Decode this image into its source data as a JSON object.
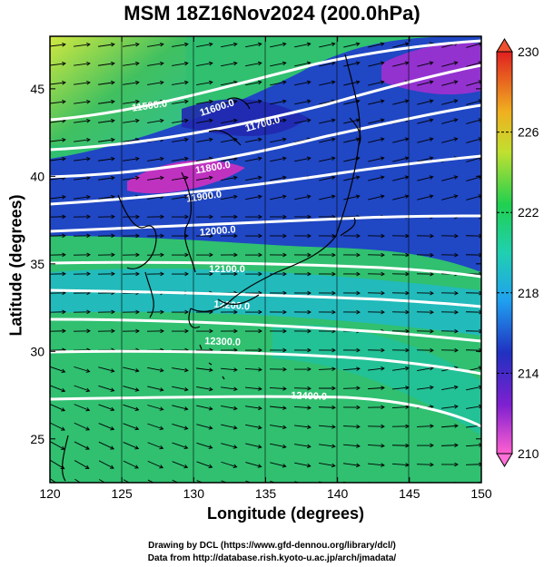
{
  "title": "MSM 18Z16Nov2024 (200.0hPa)",
  "credits": {
    "line1": "Drawing by DCL (https://www.gfd-dennou.org/library/dcl/)",
    "line2": "Data from http://database.rish.kyoto-u.ac.jp/arch/jmadata/"
  },
  "map": {
    "xlabel": "Longitude (degrees)",
    "ylabel": "Latitude  (degrees)",
    "xlim": [
      120,
      150
    ],
    "ylim": [
      22.5,
      48
    ],
    "x_ticks": [
      120,
      125,
      130,
      135,
      140,
      145,
      150
    ],
    "y_ticks": [
      25,
      30,
      35,
      40,
      45
    ],
    "shading_variable": "temperature",
    "vectors": "streamlines",
    "contour_labels": [
      "11500.0",
      "11600.0",
      "11700.0",
      "11800.0",
      "11900.0",
      "12000.0",
      "12100.0",
      "12200.0",
      "12300.0",
      "12400.0"
    ],
    "colorbar": {
      "range": [
        210,
        230
      ],
      "tick_labels": [
        "230",
        "226",
        "222",
        "218",
        "214",
        "210"
      ]
    },
    "colors": {
      "coldest": "#e030c0",
      "cold": "#2020c0",
      "cool": "#20b0e0",
      "mild": "#20d070",
      "warm": "#d0e030",
      "hottest": "#e03020"
    }
  }
}
